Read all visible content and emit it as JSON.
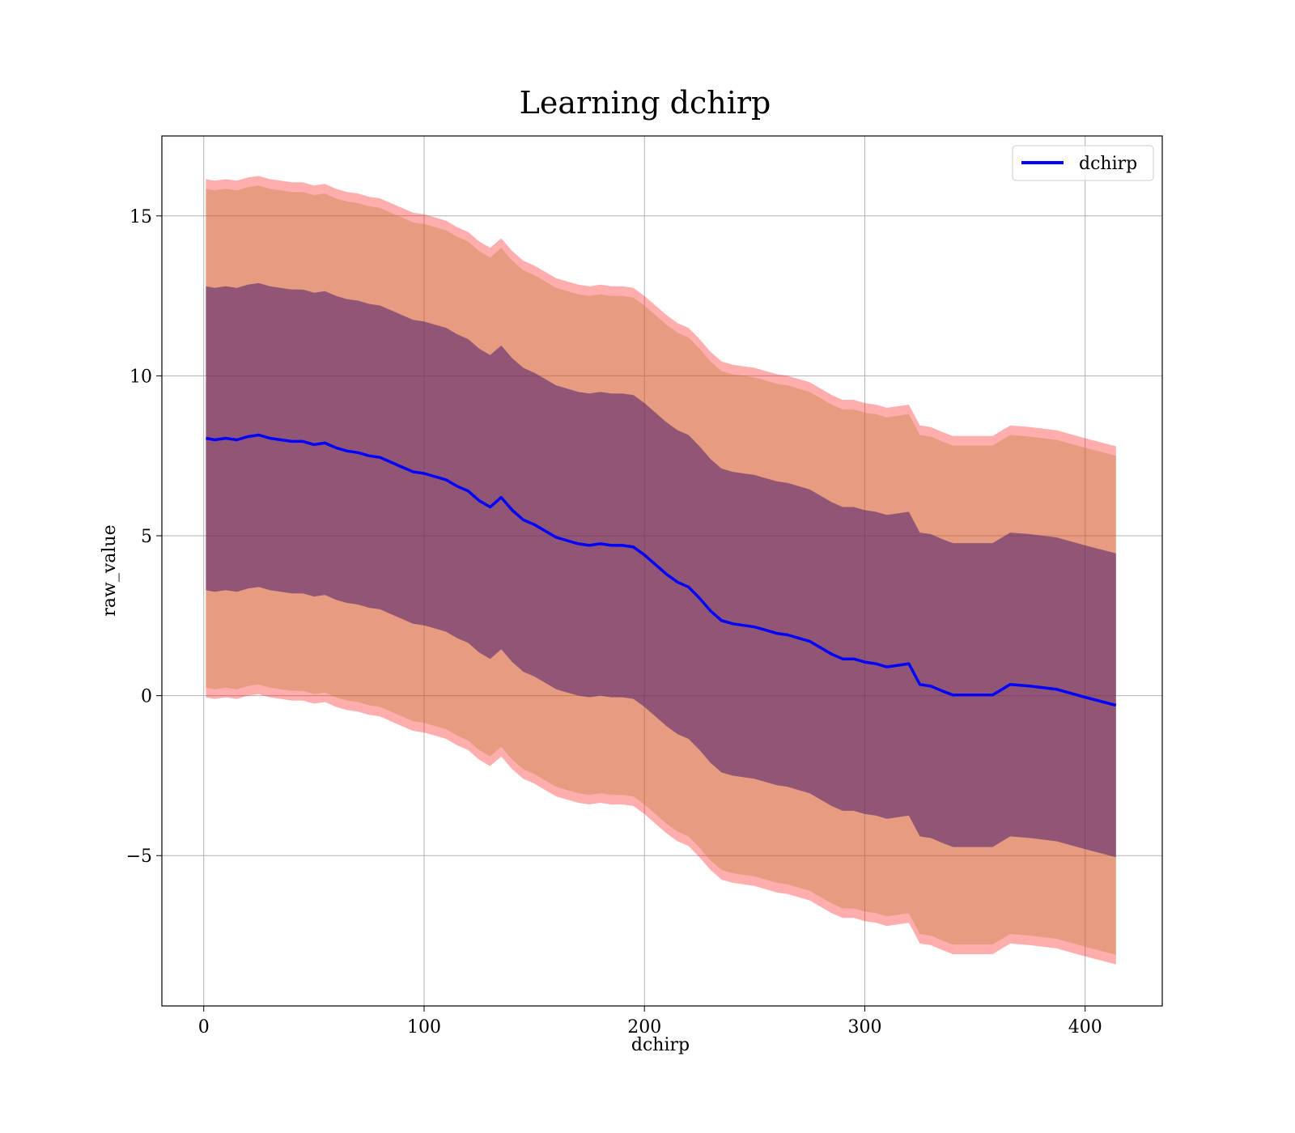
{
  "chart_data": {
    "type": "line",
    "title": "Learning dchirp",
    "xlabel": "dchirp",
    "ylabel": "raw_value",
    "xlim": [
      -19,
      435
    ],
    "ylim": [
      -9.7,
      17.5
    ],
    "xticks": [
      0,
      100,
      200,
      300,
      400
    ],
    "xtick_labels": [
      "0",
      "100",
      "200",
      "300",
      "400"
    ],
    "yticks": [
      -5,
      0,
      5,
      10,
      15
    ],
    "ytick_labels": [
      "−5",
      "0",
      "5",
      "10",
      "15"
    ],
    "grid": true,
    "legend": {
      "placement": "upper right",
      "entries": [
        "dchirp"
      ]
    },
    "colors": {
      "line": "#0000ff",
      "outer_band": "#ff0000",
      "middle_band": "#c0823a",
      "inner_band": "#4a1e6b"
    },
    "band_offsets": [
      {
        "name": "outer",
        "offset": 8.1,
        "opacity": 0.32
      },
      {
        "name": "middle",
        "offset": 7.8,
        "opacity": 0.38
      },
      {
        "name": "inner",
        "offset": 4.75,
        "opacity": 0.55
      }
    ],
    "series": [
      {
        "name": "dchirp",
        "x": [
          1,
          5,
          10,
          15,
          20,
          25,
          30,
          35,
          40,
          45,
          50,
          55,
          60,
          65,
          70,
          75,
          80,
          85,
          90,
          95,
          100,
          105,
          110,
          115,
          120,
          125,
          130,
          135,
          140,
          145,
          150,
          155,
          160,
          165,
          170,
          175,
          180,
          185,
          190,
          195,
          200,
          205,
          210,
          215,
          220,
          225,
          230,
          235,
          240,
          245,
          250,
          255,
          260,
          265,
          270,
          275,
          280,
          285,
          290,
          295,
          300,
          305,
          310,
          315,
          320,
          325,
          330,
          335,
          340,
          345,
          350,
          358,
          366,
          375,
          387,
          400,
          414
        ],
        "y": [
          8.05,
          8.0,
          8.05,
          8.0,
          8.1,
          8.15,
          8.05,
          8.0,
          7.95,
          7.95,
          7.85,
          7.9,
          7.75,
          7.65,
          7.6,
          7.5,
          7.45,
          7.3,
          7.15,
          7.0,
          6.95,
          6.85,
          6.75,
          6.55,
          6.4,
          6.1,
          5.9,
          6.2,
          5.8,
          5.5,
          5.35,
          5.15,
          4.95,
          4.85,
          4.75,
          4.7,
          4.75,
          4.7,
          4.7,
          4.65,
          4.4,
          4.1,
          3.8,
          3.55,
          3.4,
          3.05,
          2.65,
          2.35,
          2.25,
          2.2,
          2.15,
          2.05,
          1.95,
          1.9,
          1.8,
          1.7,
          1.5,
          1.3,
          1.15,
          1.15,
          1.05,
          1.0,
          0.9,
          0.95,
          1.0,
          0.35,
          0.3,
          0.15,
          0.02,
          0.02,
          0.02,
          0.02,
          0.35,
          0.3,
          0.2,
          -0.05,
          -0.3
        ]
      }
    ]
  }
}
